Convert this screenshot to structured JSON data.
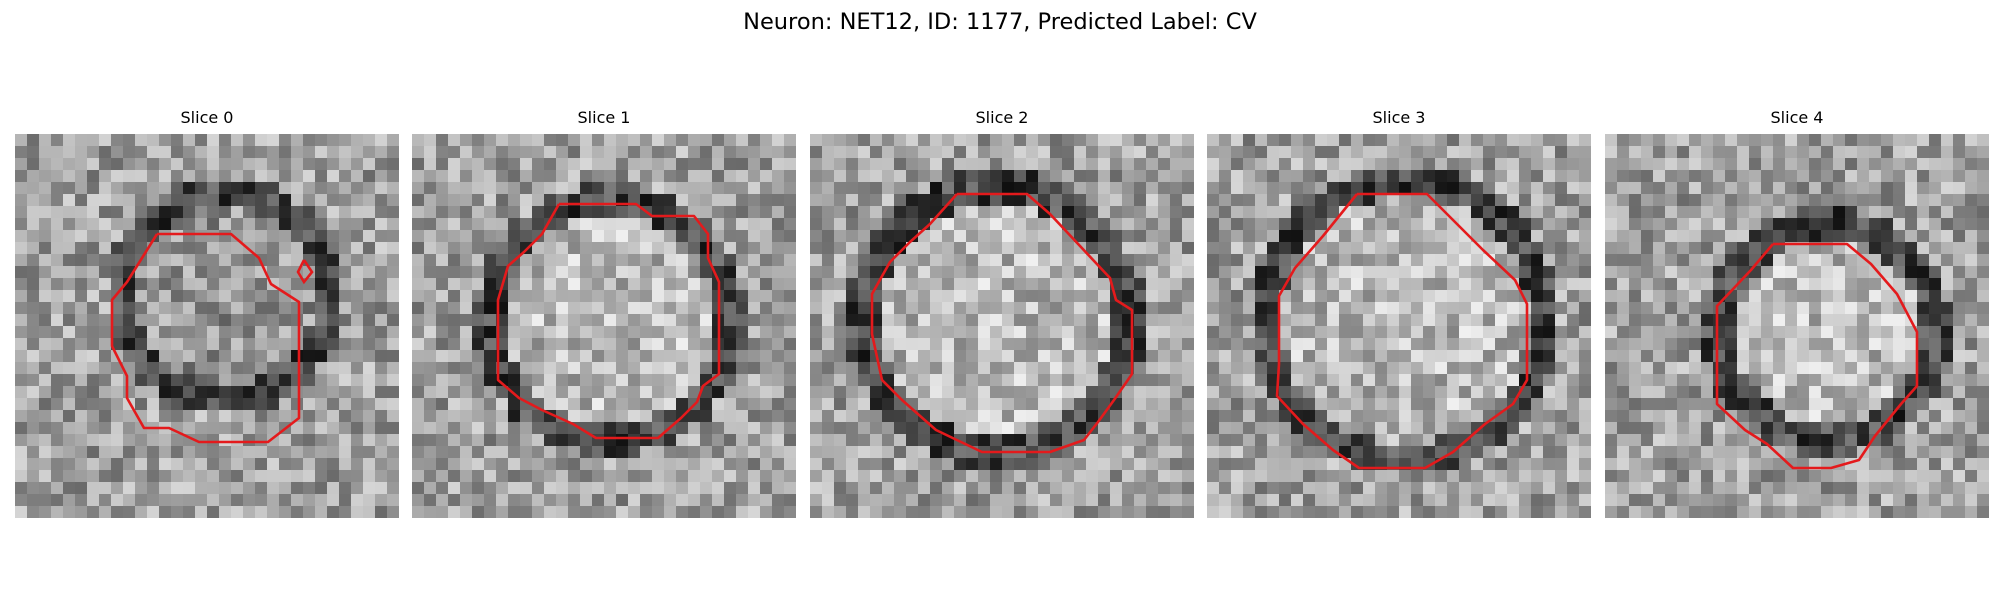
{
  "figure": {
    "title": "Neuron: NET12, ID: 1177, Predicted Label: CV",
    "colormap": "gray",
    "contour_color": "#e41a1c"
  },
  "panels": [
    {
      "title": "Slice 0",
      "contour_shape": "irregular-octagon-with-small-loop"
    },
    {
      "title": "Slice 1",
      "contour_shape": "octagon"
    },
    {
      "title": "Slice 2",
      "contour_shape": "octagon"
    },
    {
      "title": "Slice 3",
      "contour_shape": "octagon"
    },
    {
      "title": "Slice 4",
      "contour_shape": "octagon"
    }
  ]
}
